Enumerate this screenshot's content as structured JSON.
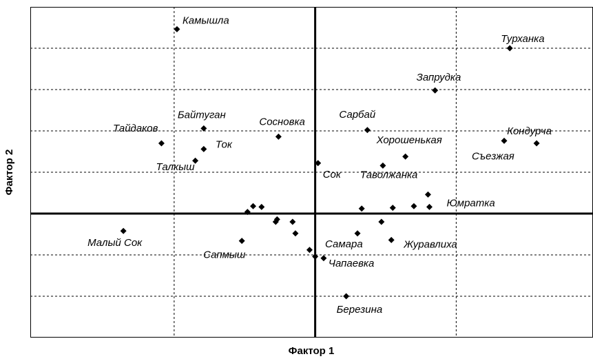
{
  "chart_data": {
    "type": "scatter",
    "xlabel": "Фактор 1",
    "ylabel": "Фактор 2",
    "xlim": [
      -2.02,
      1.97
    ],
    "ylim": [
      -1.5,
      2.5
    ],
    "xticks": [
      -1,
      0,
      1
    ],
    "yticks": [
      -1,
      -0.5,
      0,
      0.5,
      1,
      1.5,
      2
    ],
    "grid": true,
    "color": "#000000",
    "labels": [
      "Камышла",
      "Турханка",
      "Запрудка",
      "Сарбай",
      "Байтуган",
      "Сосновка",
      "Тайдаков",
      "Ток",
      "Талкыш",
      "Хорошенькая",
      "Кондурча",
      "Съезжая",
      "Сок",
      "Таволжанка",
      "Юмратка",
      "Малый Сок",
      "Сапмыш",
      "Самара",
      "Журавлиха",
      "Чапаевка",
      "Березина",
      null,
      null,
      null,
      null,
      null,
      null,
      null,
      null,
      null,
      null,
      null,
      null,
      null,
      null
    ],
    "x": [
      -0.98,
      1.38,
      0.85,
      0.37,
      -0.79,
      -0.26,
      -1.09,
      -0.79,
      -0.85,
      0.64,
      1.57,
      1.34,
      0.02,
      0.48,
      0.81,
      -1.36,
      -0.52,
      0.3,
      0.54,
      0.06,
      0.22,
      0.8,
      0.7,
      0.55,
      0.33,
      0.47,
      -0.44,
      -0.38,
      -0.48,
      -0.27,
      -0.28,
      -0.16,
      -0.14,
      -0.04,
      0.0
    ],
    "y": [
      2.23,
      2.0,
      1.49,
      1.01,
      1.03,
      0.93,
      0.85,
      0.78,
      0.64,
      0.69,
      0.85,
      0.88,
      0.61,
      0.58,
      0.08,
      -0.21,
      -0.33,
      -0.24,
      -0.32,
      -0.54,
      -1.0,
      0.23,
      0.09,
      0.07,
      0.06,
      -0.1,
      0.09,
      0.08,
      0.02,
      -0.07,
      -0.1,
      -0.1,
      -0.24,
      -0.44,
      -0.52
    ]
  }
}
